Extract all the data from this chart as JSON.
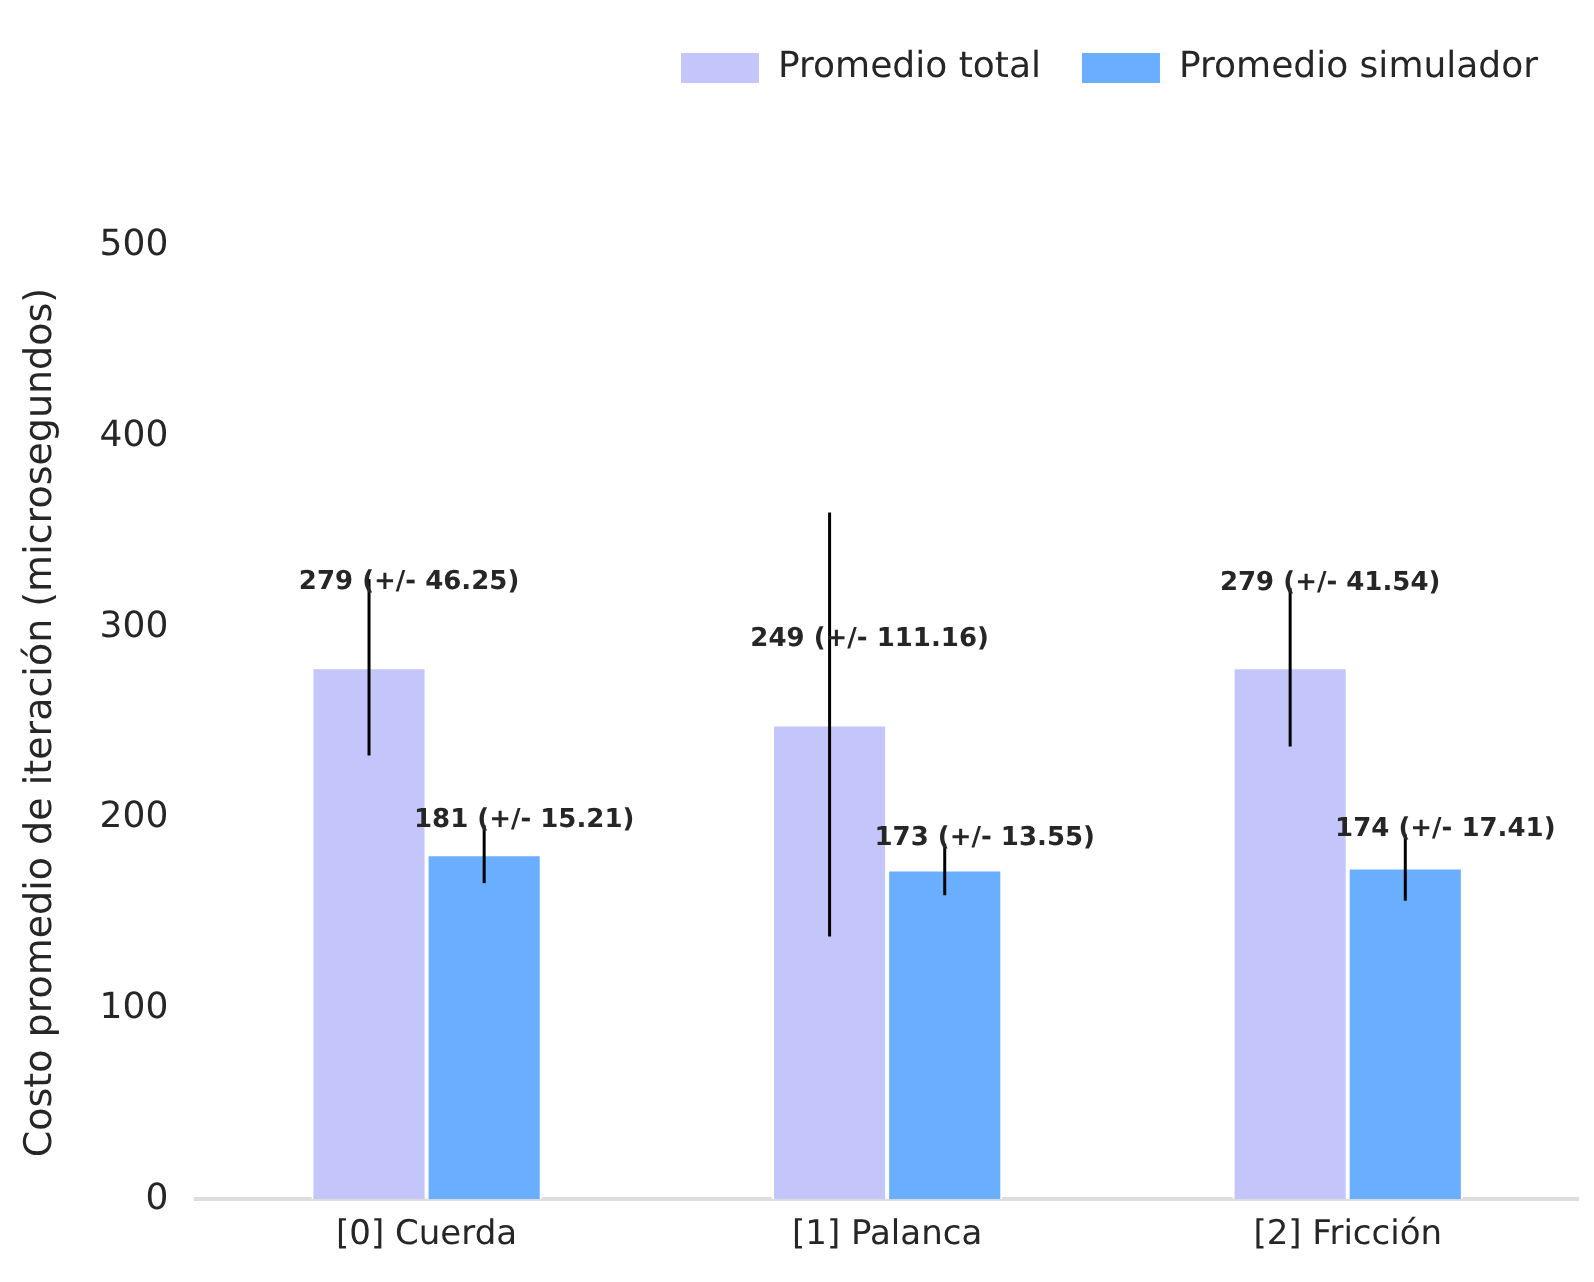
{
  "chart_data": {
    "type": "bar",
    "ylabel": "Costo promedio de iteración (microsegundos)",
    "categories": [
      "[0] Cuerda",
      "[1] Palanca",
      "[2] Fricción"
    ],
    "series": [
      {
        "name": "Promedio total",
        "color": "#c4c6fb",
        "values": [
          279,
          249,
          279
        ],
        "errors": [
          46.25,
          111.16,
          41.54
        ],
        "value_labels": [
          "279 (+/- 46.25)",
          "249 (+/- 111.16)",
          "279 (+/- 41.54)"
        ]
      },
      {
        "name": "Promedio simulador",
        "color": "#6aaeff",
        "values": [
          181,
          173,
          174
        ],
        "errors": [
          15.21,
          13.55,
          17.41
        ],
        "value_labels": [
          "181 (+/- 15.21)",
          "173 (+/- 13.55)",
          "174 (+/- 17.41)"
        ]
      }
    ],
    "ylim": [
      0,
      500
    ],
    "yticks": [
      0,
      100,
      200,
      300,
      400,
      500
    ],
    "grid": false,
    "legend": "top"
  }
}
